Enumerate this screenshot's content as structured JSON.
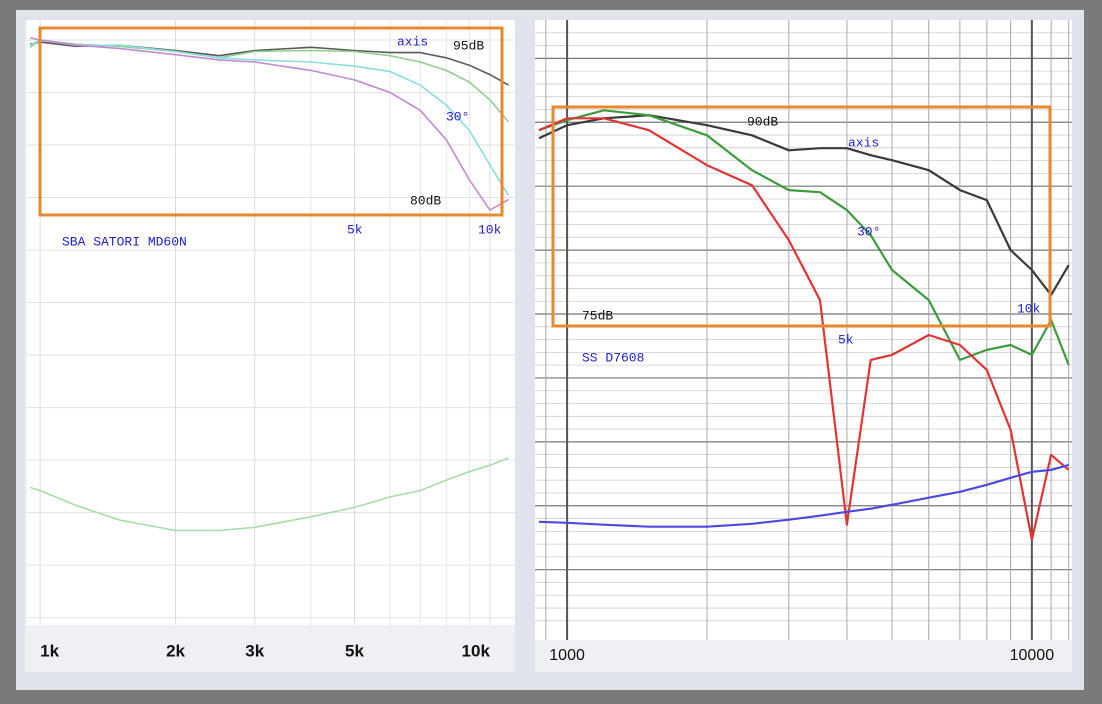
{
  "chart_data": [
    {
      "type": "line",
      "log_x": true,
      "grid": true,
      "xlim": [
        935,
        11370
      ],
      "ylim": [
        39.3,
        96.9
      ],
      "xticks": [
        {
          "value": 1000,
          "label": "1k"
        },
        {
          "value": 2000,
          "label": "2k"
        },
        {
          "value": 3000,
          "label": "3k"
        },
        {
          "value": 5000,
          "label": "5k"
        },
        {
          "value": 10000,
          "label": "10k"
        }
      ],
      "minor_xticks": [
        4000,
        6000,
        7000,
        8000,
        9000
      ],
      "ygrid": [
        95,
        90,
        85,
        80,
        75,
        70,
        65,
        60,
        55,
        50,
        45,
        40
      ],
      "annotations": [
        "95dB",
        "80dB",
        "5k",
        "10k",
        "SBA SATORI MD60N"
      ],
      "x": [
        950,
        1000,
        1200,
        1500,
        2000,
        2500,
        3000,
        4000,
        5000,
        6000,
        7000,
        8000,
        9000,
        10000,
        11000
      ],
      "series": [
        {
          "name": "axis",
          "color": "#5a5a5a",
          "values": [
            94.6,
            94.8,
            94.4,
            94.5,
            94.0,
            93.5,
            94.0,
            94.3,
            94.0,
            93.8,
            93.8,
            93.3,
            92.6,
            91.7,
            90.7
          ]
        },
        {
          "color": "#8fcf8f",
          "values": [
            94.3,
            95.0,
            94.6,
            94.4,
            93.9,
            93.3,
            93.9,
            94.0,
            93.9,
            93.5,
            92.9,
            92.1,
            91.0,
            89.3,
            87.2
          ]
        },
        {
          "name": "30°",
          "color": "#8adede",
          "values": [
            94.5,
            95.0,
            94.5,
            94.5,
            93.9,
            93.3,
            93.1,
            92.9,
            92.5,
            92.0,
            90.7,
            88.8,
            86.4,
            83.1,
            80.2
          ]
        },
        {
          "color": "#c488d4",
          "values": [
            95.2,
            95.0,
            94.5,
            94.2,
            93.6,
            93.1,
            92.9,
            92.1,
            91.2,
            90.0,
            88.3,
            85.5,
            81.7,
            78.8,
            79.8
          ]
        },
        {
          "color": "#a6dea6",
          "values": [
            52.4,
            52.1,
            50.7,
            49.3,
            48.3,
            48.3,
            48.6,
            49.6,
            50.5,
            51.5,
            52.1,
            53.1,
            53.9,
            54.5,
            55.2
          ]
        }
      ]
    },
    {
      "type": "line",
      "log_x": true,
      "grid": true,
      "xlim": [
        853,
        12200
      ],
      "ylim": [
        49.5,
        98
      ],
      "xticks": [
        1000,
        10000
      ],
      "minor_xticks": [
        900,
        2000,
        3000,
        4000,
        5000,
        6000,
        7000,
        8000,
        9000,
        11000,
        12000
      ],
      "ygrid": [
        95,
        90,
        85,
        80,
        75,
        70,
        65,
        60,
        55
      ],
      "minor_ygrid": [
        51,
        52,
        53,
        54,
        56,
        57,
        58,
        59,
        61,
        62,
        63,
        64,
        66,
        67,
        68,
        69,
        71,
        72,
        73,
        74,
        76,
        77,
        78,
        79,
        81,
        82,
        83,
        84,
        86,
        87,
        88,
        89,
        91,
        92,
        93,
        94,
        96,
        97
      ],
      "annotations": [
        "90dB",
        "75dB",
        "5k",
        "10k",
        "SS D7608"
      ],
      "x": [
        870,
        1000,
        1200,
        1500,
        2000,
        2500,
        3000,
        3500,
        4000,
        4500,
        5000,
        6000,
        7000,
        8000,
        9000,
        10000,
        11000,
        12000
      ],
      "series": [
        {
          "name": "axis",
          "color": "#3a3a3a",
          "values": [
            88.75,
            89.77,
            90.31,
            90.55,
            89.77,
            88.98,
            87.81,
            87.97,
            87.97,
            87.42,
            87.03,
            86.25,
            84.69,
            83.91,
            80.0,
            78.44,
            76.48,
            78.83
          ]
        },
        {
          "name": "30°",
          "color": "#3c9c3c",
          "values": [
            89.38,
            90.16,
            90.94,
            90.55,
            88.98,
            86.25,
            84.69,
            84.53,
            83.13,
            81.17,
            78.44,
            76.09,
            71.41,
            72.19,
            72.58,
            71.8,
            74.53,
            71.02
          ]
        },
        {
          "color": "#e23434",
          "values": [
            89.38,
            90.31,
            90.31,
            89.38,
            86.64,
            85.08,
            80.78,
            76.09,
            58.52,
            71.41,
            71.8,
            73.36,
            72.58,
            70.63,
            65.94,
            57.34,
            63.98,
            62.81
          ]
        },
        {
          "color": "#4b4be2",
          "values": [
            58.75,
            58.67,
            58.52,
            58.36,
            58.36,
            58.59,
            58.91,
            59.22,
            59.53,
            59.77,
            60.08,
            60.63,
            61.09,
            61.64,
            62.19,
            62.66,
            62.81,
            63.2
          ]
        }
      ]
    }
  ]
}
